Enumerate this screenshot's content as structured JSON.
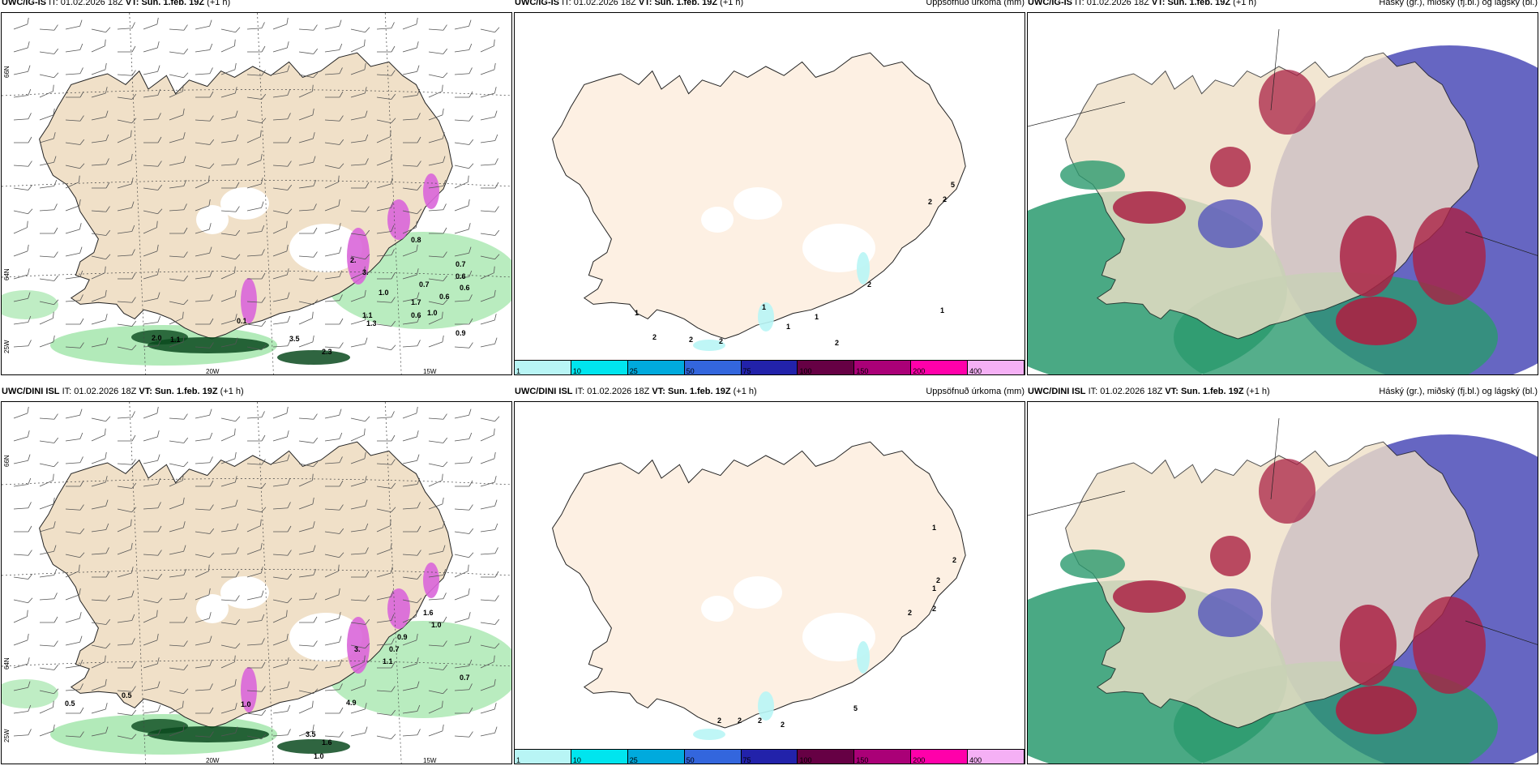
{
  "panels": [
    {
      "row": 0,
      "col": 0,
      "model": "UWC/IG-IS",
      "it_label": "IT:",
      "it": "01.02.2026 18Z",
      "vt_label": "VT:",
      "vt": "Sun. 1.feb. 19Z",
      "lead": "(+1 h)",
      "title": ""
    },
    {
      "row": 0,
      "col": 1,
      "model": "UWC/IG-IS",
      "it_label": "IT:",
      "it": "01.02.2026 18Z",
      "vt_label": "VT:",
      "vt": "Sun. 1.feb. 19Z",
      "lead": "(+1 h)",
      "title": "Uppsöfnuð úrkoma (mm)"
    },
    {
      "row": 0,
      "col": 2,
      "model": "UWC/IG-IS",
      "it_label": "IT:",
      "it": "01.02.2026 18Z",
      "vt_label": "VT:",
      "vt": "Sun. 1.feb. 19Z",
      "lead": "(+1 h)",
      "title": "Háský (gr.), miðský (fj.bl.) og lágský (bl.)"
    },
    {
      "row": 1,
      "col": 0,
      "model": "UWC/DINI ISL",
      "it_label": "IT:",
      "it": "01.02.2026 18Z",
      "vt_label": "VT:",
      "vt": "Sun. 1.feb. 19Z",
      "lead": "(+1 h)",
      "title": ""
    },
    {
      "row": 1,
      "col": 1,
      "model": "UWC/DINI ISL",
      "it_label": "IT:",
      "it": "01.02.2026 18Z",
      "vt_label": "VT:",
      "vt": "Sun. 1.feb. 19Z",
      "lead": "(+1 h)",
      "title": "Uppsöfnuð úrkoma (mm)"
    },
    {
      "row": 1,
      "col": 2,
      "model": "UWC/DINI ISL",
      "it_label": "IT:",
      "it": "01.02.2026 18Z",
      "vt_label": "VT:",
      "vt": "Sun. 1.feb. 19Z",
      "lead": "(+1 h)",
      "title": "Háský (gr.), miðský (fj.bl.) og lágský (bl.)"
    }
  ],
  "colorbar": {
    "labels": [
      "1",
      "10",
      "25",
      "50",
      "75",
      "100",
      "150",
      "200",
      "400"
    ],
    "colors": [
      "#b8f5f5",
      "#00e5ee",
      "#00aadd",
      "#3366dd",
      "#2222aa",
      "#660044",
      "#aa0077",
      "#ff00aa",
      "#f5b0f5"
    ]
  },
  "grid_labels": {
    "lat_66": "66N",
    "lat_64": "64N",
    "lat_25w": "25W",
    "lon_20w": "20W",
    "lon_15w": "15W"
  },
  "precip_values_top": [
    "2.0",
    "1.1",
    "3.5",
    "2.3",
    "1.3",
    "1.1",
    "1.7",
    "1.0",
    "0.6",
    "0.6",
    "0.7",
    "0.7",
    "0.6",
    "0.9",
    "0.8",
    "0.1",
    "2.",
    "3.",
    "0.6",
    "1.0"
  ],
  "precip_values_bottom": [
    "0.5",
    "0.5",
    "4.9",
    "3.5",
    "1.6",
    "1.0",
    "0.7",
    "1.1",
    "0.9",
    "0.7",
    "1.6",
    "1.0",
    "3.",
    "1.0"
  ],
  "accum_values_top": [
    "2",
    "1",
    "2",
    "2",
    "1",
    "1",
    "1",
    "2",
    "2",
    "5",
    "2",
    "2",
    "1"
  ],
  "accum_values_bottom": [
    "2",
    "2",
    "2",
    "2",
    "5",
    "1",
    "2",
    "1",
    "2",
    "2",
    "2"
  ],
  "colors": {
    "land": "#f0e0c8",
    "land_light": "#fdf0e3",
    "green": "#7fdc8a",
    "green_dark": "#0a4a1e",
    "magenta": "#d966d9",
    "cloud_high": "#5555bb",
    "cloud_mid": "#aa2244",
    "cloud_low": "#2a9a6e"
  }
}
